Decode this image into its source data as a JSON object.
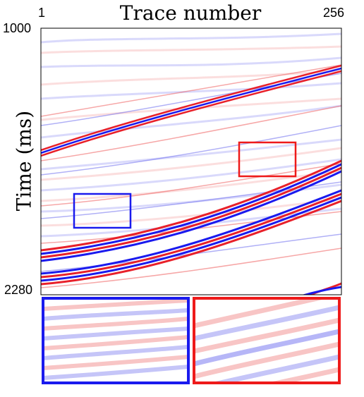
{
  "title": "Trace number",
  "x_axis": {
    "start_label": "1",
    "end_label": "256"
  },
  "y_axis": {
    "label": "Time (ms)",
    "top_label": "1000",
    "bottom_label": "2280"
  },
  "colors": {
    "positive": "#e8202a",
    "negative": "#2020e0",
    "box_blue": "#1a1aee",
    "box_red": "#ee1a1a",
    "frame": "#000000"
  }
}
